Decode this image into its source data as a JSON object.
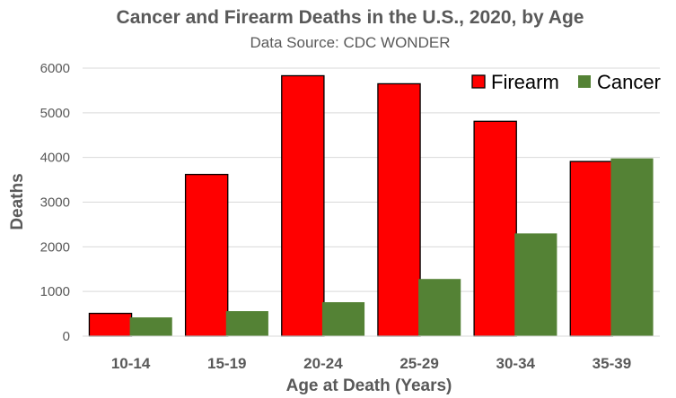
{
  "chart_data": {
    "type": "bar",
    "title": "Cancer and Firearm Deaths in the U.S., 2020, by Age",
    "subtitle": "Data Source: CDC WONDER",
    "xlabel": "Age at Death (Years)",
    "ylabel": "Deaths",
    "categories": [
      "10-14",
      "15-19",
      "20-24",
      "25-29",
      "30-34",
      "35-39"
    ],
    "series": [
      {
        "name": "Firearm",
        "color": "#ff0000",
        "values": [
          510,
          3620,
          5830,
          5650,
          4810,
          3910
        ]
      },
      {
        "name": "Cancer",
        "color": "#548235",
        "values": [
          420,
          560,
          760,
          1280,
          2300,
          3980
        ]
      }
    ],
    "ylim": [
      0,
      6000
    ],
    "yticks": [
      0,
      1000,
      2000,
      3000,
      4000,
      5000,
      6000
    ],
    "grid": true,
    "legend_position": "top-right"
  }
}
